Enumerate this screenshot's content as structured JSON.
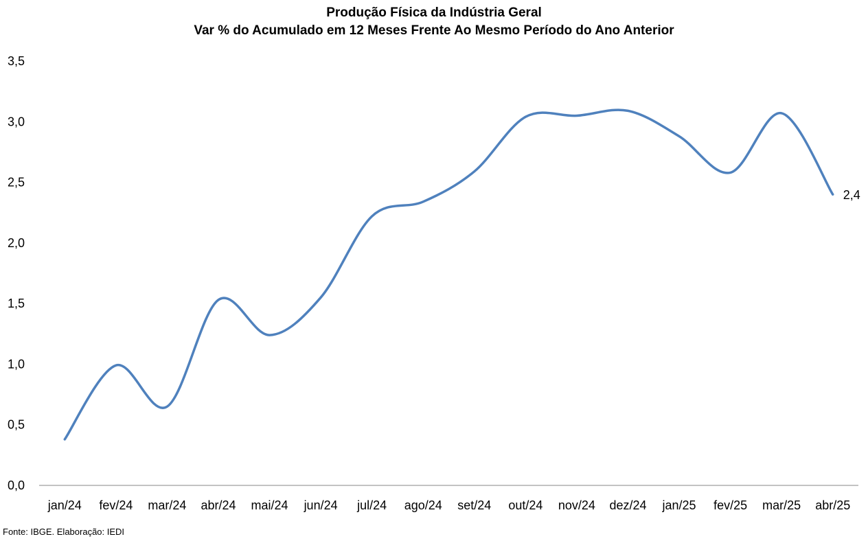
{
  "chart_data": {
    "type": "line",
    "title": "Produção Física da Indústria Geral",
    "subtitle": "Var % do Acumulado em 12 Meses Frente Ao Mesmo Período do Ano Anterior",
    "categories": [
      "jan/24",
      "fev/24",
      "mar/24",
      "abr/24",
      "mai/24",
      "jun/24",
      "jul/24",
      "ago/24",
      "set/24",
      "out/24",
      "nov/24",
      "dez/24",
      "jan/25",
      "fev/25",
      "mar/25",
      "abr/25"
    ],
    "series": [
      {
        "values": [
          0.38,
          0.99,
          0.65,
          1.53,
          1.24,
          1.55,
          2.22,
          2.34,
          2.59,
          3.04,
          3.05,
          3.09,
          2.88,
          2.58,
          3.07,
          2.4
        ],
        "color": "#4f81bd"
      }
    ],
    "ylim": [
      0,
      3.5
    ],
    "yticks": [
      "0,0",
      "0,5",
      "1,0",
      "1,5",
      "2,0",
      "2,5",
      "3,0",
      "3,5"
    ],
    "grid": false,
    "legend": "none",
    "data_labels": [
      {
        "index": 15,
        "text": "2,4"
      }
    ],
    "xlabel": "",
    "ylabel": ""
  },
  "footer": {
    "source": "Fonte: IBGE. Elaboração: IEDI"
  }
}
